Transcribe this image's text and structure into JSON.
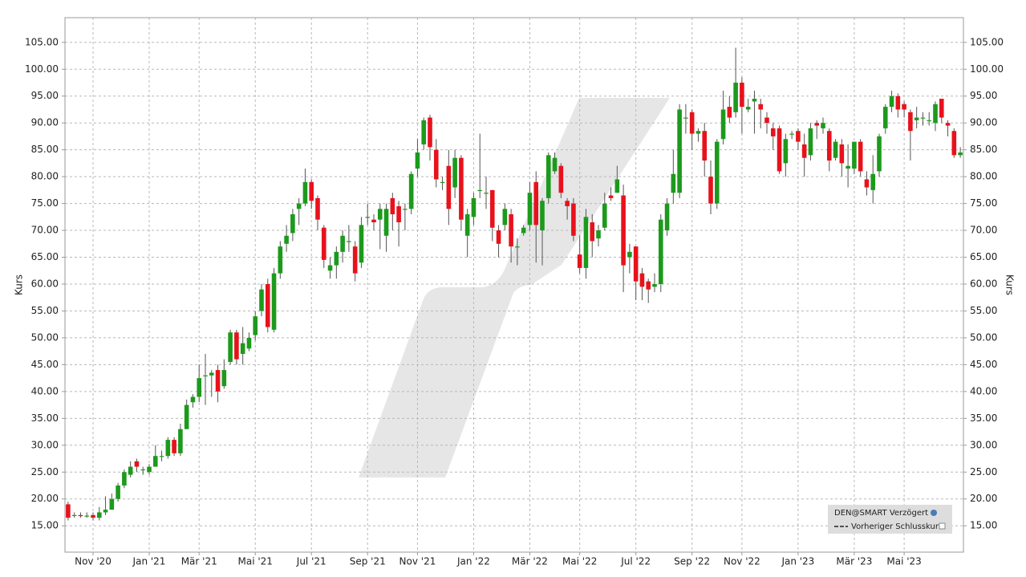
{
  "chart_data": {
    "type": "candlestick",
    "y_label": "Kurs",
    "categories": [
      null,
      null,
      null,
      null,
      "Nov '20",
      null,
      null,
      null,
      null,
      null,
      null,
      null,
      null,
      "Jan '21",
      null,
      null,
      null,
      null,
      null,
      null,
      null,
      "Mär '21",
      null,
      null,
      null,
      null,
      null,
      null,
      null,
      null,
      "Mai '21",
      null,
      null,
      null,
      null,
      null,
      null,
      null,
      null,
      "Jul '21",
      null,
      null,
      null,
      null,
      null,
      null,
      null,
      null,
      "Sep '21",
      null,
      null,
      null,
      null,
      null,
      null,
      null,
      "Nov '21",
      null,
      null,
      null,
      null,
      null,
      null,
      null,
      null,
      "Jan '22",
      null,
      null,
      null,
      null,
      null,
      null,
      null,
      null,
      "Mär '22",
      null,
      null,
      null,
      null,
      null,
      null,
      null,
      "Mai '22",
      null,
      null,
      null,
      null,
      null,
      null,
      null,
      null,
      "Jul '22",
      null,
      null,
      null,
      null,
      null,
      null,
      null,
      null,
      "Sep '22",
      null,
      null,
      null,
      null,
      null,
      null,
      null,
      "Nov '22",
      null,
      null,
      null,
      null,
      null,
      null,
      null,
      null,
      "Jan '23",
      null,
      null,
      null,
      null,
      null,
      null,
      null,
      null,
      "Mär '23",
      null,
      null,
      null,
      null,
      null,
      null,
      null,
      "Mai '23",
      null,
      null,
      null,
      null,
      null,
      null,
      null,
      null,
      null
    ],
    "open": [
      19,
      17,
      17,
      16.8,
      17,
      16.5,
      17.5,
      18,
      20,
      22.5,
      24.5,
      27,
      25.5,
      25,
      26,
      28,
      28,
      31,
      28.5,
      33,
      38,
      39,
      43,
      43,
      44,
      41,
      45.5,
      51,
      47,
      48,
      50.5,
      55,
      60,
      51.5,
      62,
      67.5,
      69.5,
      74,
      75,
      79,
      76,
      70.5,
      62.5,
      63.5,
      66,
      68,
      67,
      64,
      72.5,
      72,
      72,
      69,
      76,
      74.5,
      74,
      74,
      81.5,
      86,
      91,
      85,
      79,
      82,
      78,
      83.5,
      69,
      72.5,
      77.5,
      77,
      77.5,
      70,
      71,
      73,
      67,
      69.5,
      71,
      79,
      70,
      76,
      81,
      82,
      75.5,
      75,
      65.5,
      63,
      71.5,
      68.5,
      70.5,
      76.5,
      77,
      76.5,
      65,
      67,
      62,
      60.5,
      59.5,
      60,
      70,
      77,
      77,
      91,
      92,
      88,
      88.5,
      80,
      75,
      87,
      93,
      92,
      97.5,
      92.5,
      94,
      93.5,
      91,
      89,
      89,
      82.5,
      88,
      88.5,
      86,
      84,
      90,
      89,
      88.5,
      83.5,
      86,
      81.5,
      81.5,
      86.5,
      79.5,
      77.5,
      81,
      89,
      93,
      95,
      93.5,
      92,
      90.5,
      91,
      90.5,
      90,
      94.5,
      90,
      88.5,
      84
    ],
    "high": [
      19.5,
      17.5,
      17.5,
      17.5,
      17.5,
      18.5,
      20.5,
      21,
      23,
      25.5,
      27,
      27.5,
      26,
      26.5,
      30,
      29,
      31.5,
      31.5,
      34,
      38.5,
      39.5,
      45,
      47,
      44,
      45,
      46,
      51.5,
      51.5,
      52,
      51,
      55,
      60,
      61,
      63,
      68,
      71,
      74,
      76,
      81.5,
      79.5,
      76.5,
      71,
      65,
      67,
      70,
      71,
      68,
      72.5,
      75,
      73,
      75,
      75,
      77,
      75.5,
      75,
      81,
      87,
      91,
      91.5,
      87,
      80,
      85,
      85,
      84,
      74,
      77,
      88,
      80,
      77.5,
      71,
      75,
      74,
      68.5,
      71,
      79,
      81,
      76,
      84.5,
      84.5,
      82.5,
      76,
      76,
      69,
      74,
      73,
      71,
      77,
      78,
      82,
      78.5,
      67.5,
      67,
      63,
      61,
      62,
      73,
      76,
      85,
      93.5,
      93.5,
      92.5,
      89,
      90,
      83,
      87,
      96,
      95,
      104,
      98.5,
      94.5,
      96,
      94.5,
      92,
      90,
      89.5,
      88,
      88.5,
      89,
      88,
      90,
      90.5,
      91,
      89,
      87,
      87,
      86,
      86.5,
      87,
      81,
      84,
      88,
      93.5,
      96,
      95.5,
      94,
      92.5,
      93,
      92,
      92,
      94,
      94.5,
      90.5,
      89,
      85.5
    ],
    "low": [
      16,
      16.5,
      16.5,
      16.5,
      16,
      16,
      17,
      18,
      19.5,
      22,
      24,
      25,
      24.5,
      24.5,
      26,
      27,
      27.5,
      28,
      28,
      33,
      37,
      38,
      37.5,
      39,
      38,
      40.5,
      45,
      45,
      45,
      47.5,
      49.5,
      54,
      51,
      51,
      61,
      66,
      68,
      71,
      74.5,
      74,
      70,
      63,
      61,
      61,
      64,
      66,
      60.5,
      63,
      71,
      70,
      66.5,
      66,
      70,
      67,
      70,
      73,
      80,
      85,
      83,
      78,
      77.5,
      71,
      76,
      70,
      65,
      71,
      76,
      74,
      68,
      65,
      70,
      64,
      63.5,
      69,
      70,
      64,
      63.5,
      75,
      80.5,
      76,
      72,
      68,
      62,
      61,
      65,
      67,
      70,
      75.5,
      77,
      58.5,
      62,
      57,
      57,
      56.5,
      58.5,
      58.5,
      69,
      75,
      76,
      88,
      85,
      86.5,
      80,
      73,
      74,
      86,
      90,
      91,
      88,
      92,
      88,
      89,
      88,
      85,
      80.5,
      80,
      87,
      85,
      80,
      83,
      87,
      88,
      81,
      83,
      80,
      78,
      80.5,
      80,
      76.5,
      75,
      80,
      88,
      92,
      91,
      91,
      83,
      89,
      89.5,
      89.5,
      88.5,
      90,
      87.5,
      83.5,
      83.5
    ],
    "close": [
      16.5,
      17,
      16.8,
      16.9,
      16.5,
      17.5,
      18,
      20,
      22.5,
      25,
      26,
      26,
      25.5,
      26,
      28,
      28,
      31,
      28.5,
      33,
      37.5,
      39,
      42.5,
      43,
      43.5,
      40,
      44,
      51,
      46,
      49,
      50,
      54,
      59,
      52,
      62,
      67,
      69,
      73,
      75,
      79,
      75.5,
      72,
      64.5,
      63.5,
      66,
      69,
      68,
      62,
      71,
      72.5,
      71.5,
      74,
      74,
      73,
      71.5,
      74,
      80.5,
      84.5,
      90.5,
      85.5,
      79.5,
      79,
      74,
      83.5,
      72,
      73,
      76,
      77.5,
      77,
      70.5,
      67.5,
      74,
      67,
      67,
      70.5,
      77,
      71,
      75.5,
      84,
      83.5,
      77,
      74.5,
      69,
      63,
      72.5,
      68,
      70,
      75,
      76,
      79.5,
      63.5,
      66,
      60.5,
      59.5,
      59,
      60,
      72,
      75,
      80.5,
      92.5,
      91,
      88,
      88.5,
      83,
      75,
      86.5,
      92.5,
      91,
      97.5,
      93,
      93,
      94.5,
      92.5,
      90,
      87.5,
      81,
      87,
      88,
      86.5,
      83.5,
      89,
      89.5,
      90,
      83,
      86.5,
      82.5,
      82,
      86.5,
      81,
      78,
      80.5,
      87.5,
      93,
      95,
      92.5,
      92.5,
      88.5,
      91,
      91,
      90.5,
      93.5,
      91,
      89.5,
      84,
      84.5
    ],
    "up_color": "#1c9a1c",
    "down_color": "#e8121c",
    "wick_color": "#555555",
    "ylim": [
      10.1,
      109.6
    ],
    "yticks": [
      {
        "value": 15,
        "label": "15.00"
      },
      {
        "value": 20,
        "label": "20.00"
      },
      {
        "value": 25,
        "label": "25.00"
      },
      {
        "value": 30,
        "label": "30.00"
      },
      {
        "value": 35,
        "label": "35.00"
      },
      {
        "value": 40,
        "label": "40.00"
      },
      {
        "value": 45,
        "label": "45.00"
      },
      {
        "value": 50,
        "label": "50.00"
      },
      {
        "value": 55,
        "label": "55.00"
      },
      {
        "value": 60,
        "label": "60.00"
      },
      {
        "value": 65,
        "label": "65.00"
      },
      {
        "value": 70,
        "label": "70.00"
      },
      {
        "value": 75,
        "label": "75.00"
      },
      {
        "value": 80,
        "label": "80.00"
      },
      {
        "value": 85,
        "label": "85.00"
      },
      {
        "value": 90,
        "label": "90.00"
      },
      {
        "value": 95,
        "label": "95.00"
      },
      {
        "value": 100,
        "label": "100.00"
      },
      {
        "value": 105,
        "label": "105.00"
      }
    ],
    "grid": true,
    "legend": [
      "DEN@SMART Verzögert",
      "Vorheriger Schlusskurs"
    ]
  }
}
